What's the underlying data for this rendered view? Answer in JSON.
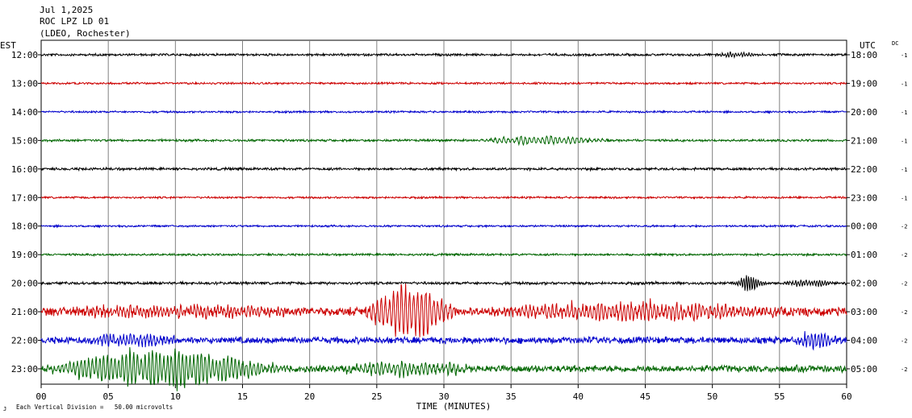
{
  "chart_data": {
    "type": "line",
    "title_lines": [
      "Jul 1,2025",
      "ROC LPZ LD 01",
      "(LDEO, Rochester)"
    ],
    "left_axis_label": "EST",
    "right_axis_label": "UTC",
    "dc_label": "DC",
    "xlabel": "TIME (MINUTES)",
    "x_ticks": [
      "00",
      "05",
      "10",
      "15",
      "20",
      "25",
      "30",
      "35",
      "40",
      "45",
      "50",
      "55",
      "60"
    ],
    "xlim": [
      0,
      60
    ],
    "footer_prefix": "J",
    "footer_note": "Each Vertical Division =   50.00 microvolts",
    "trace_colors": [
      "#000000",
      "#cc0000",
      "#0000cc",
      "#006600"
    ],
    "traces": [
      {
        "est": "12:00",
        "utc": "18:00",
        "dc": "-1",
        "base_amp": 1.2,
        "events": [
          {
            "start": 50,
            "end": 54,
            "amp": 3,
            "period": 0.2
          }
        ]
      },
      {
        "est": "13:00",
        "utc": "19:00",
        "dc": "-1",
        "base_amp": 1.0,
        "events": []
      },
      {
        "est": "14:00",
        "utc": "20:00",
        "dc": "-1",
        "base_amp": 1.0,
        "events": []
      },
      {
        "est": "15:00",
        "utc": "21:00",
        "dc": "-1",
        "base_amp": 1.2,
        "events": [
          {
            "start": 32,
            "end": 44,
            "amp": 5,
            "period": 0.32
          }
        ]
      },
      {
        "est": "16:00",
        "utc": "22:00",
        "dc": "-1",
        "base_amp": 1.3,
        "events": []
      },
      {
        "est": "17:00",
        "utc": "23:00",
        "dc": "-1",
        "base_amp": 1.0,
        "events": []
      },
      {
        "est": "18:00",
        "utc": "00:00",
        "dc": "-2",
        "base_amp": 1.0,
        "events": []
      },
      {
        "est": "19:00",
        "utc": "01:00",
        "dc": "-2",
        "base_amp": 1.1,
        "events": []
      },
      {
        "est": "20:00",
        "utc": "02:00",
        "dc": "-2",
        "base_amp": 1.4,
        "events": [
          {
            "start": 51.5,
            "end": 54.5,
            "amp": 9,
            "period": 0.18
          },
          {
            "start": 55,
            "end": 60,
            "amp": 4,
            "period": 0.2
          }
        ]
      },
      {
        "est": "21:00",
        "utc": "03:00",
        "dc": "-2",
        "base_amp": 4.5,
        "events": [
          {
            "start": 0,
            "end": 24,
            "amp": 6,
            "period": 0.25
          },
          {
            "start": 24,
            "end": 32,
            "amp": 32,
            "period": 0.3
          },
          {
            "start": 32,
            "end": 60,
            "amp": 10,
            "period": 0.28
          }
        ]
      },
      {
        "est": "22:00",
        "utc": "04:00",
        "dc": "-2",
        "base_amp": 3.5,
        "events": [
          {
            "start": 3,
            "end": 12,
            "amp": 7,
            "period": 0.25
          },
          {
            "start": 56,
            "end": 60,
            "amp": 11,
            "period": 0.25
          }
        ]
      },
      {
        "est": "23:00",
        "utc": "05:00",
        "dc": "-2",
        "base_amp": 3.5,
        "events": [
          {
            "start": 0,
            "end": 21,
            "amp": 22,
            "period": 0.28
          },
          {
            "start": 21,
            "end": 35,
            "amp": 8,
            "period": 0.3
          }
        ]
      }
    ]
  }
}
